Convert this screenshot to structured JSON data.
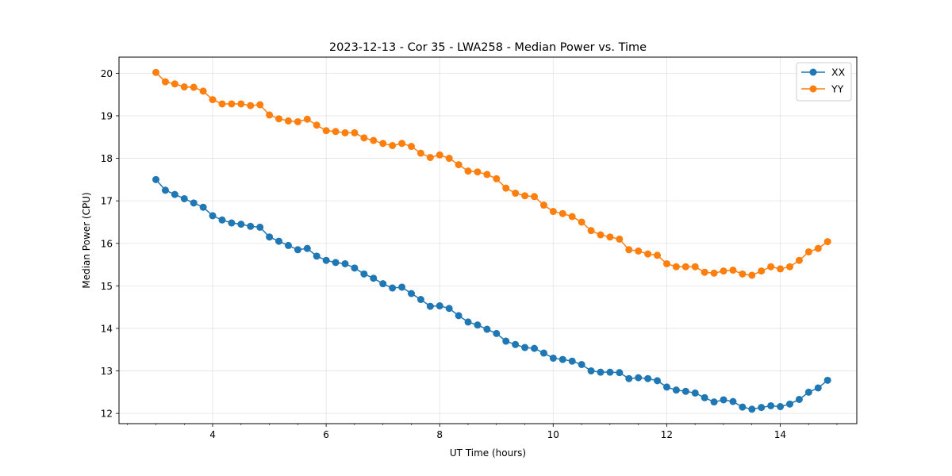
{
  "chart_data": {
    "type": "line",
    "title": "2023-12-13 - Cor 35 - LWA258 - Median Power vs. Time",
    "xlabel": "UT Time (hours)",
    "ylabel": "Median Power (CPU)",
    "xlim": [
      2.35,
      15.35
    ],
    "ylim": [
      11.76,
      20.38
    ],
    "xticks": [
      4,
      6,
      8,
      10,
      12,
      14
    ],
    "xtick_labels": [
      "4",
      "6",
      "8",
      "10",
      "12",
      "14"
    ],
    "yticks": [
      12,
      13,
      14,
      15,
      16,
      17,
      18,
      19,
      20
    ],
    "ytick_labels": [
      "12",
      "13",
      "14",
      "15",
      "16",
      "17",
      "18",
      "19",
      "20"
    ],
    "grid": true,
    "legend_position": "top-right",
    "x_start": 3.0,
    "x_step": 0.1667,
    "series": [
      {
        "name": "XX",
        "color": "#1f77b4",
        "values": [
          17.5,
          17.25,
          17.15,
          17.05,
          16.95,
          16.85,
          16.65,
          16.55,
          16.48,
          16.45,
          16.4,
          16.38,
          16.15,
          16.05,
          15.95,
          15.85,
          15.88,
          15.7,
          15.6,
          15.55,
          15.52,
          15.42,
          15.28,
          15.18,
          15.05,
          14.95,
          14.97,
          14.82,
          14.68,
          14.52,
          14.53,
          14.47,
          14.3,
          14.15,
          14.08,
          13.98,
          13.88,
          13.7,
          13.62,
          13.55,
          13.53,
          13.42,
          13.3,
          13.27,
          13.23,
          13.15,
          13.0,
          12.97,
          12.97,
          12.96,
          12.82,
          12.84,
          12.82,
          12.77,
          12.62,
          12.55,
          12.52,
          12.48,
          12.37,
          12.27,
          12.32,
          12.28,
          12.15,
          12.1,
          12.14,
          12.18,
          12.16,
          12.22,
          12.33,
          12.5,
          12.6,
          12.78
        ]
      },
      {
        "name": "YY",
        "color": "#ff7f0e",
        "values": [
          20.02,
          19.8,
          19.75,
          19.68,
          19.67,
          19.58,
          19.38,
          19.28,
          19.28,
          19.28,
          19.24,
          19.26,
          19.02,
          18.93,
          18.88,
          18.86,
          18.92,
          18.78,
          18.65,
          18.63,
          18.6,
          18.6,
          18.48,
          18.42,
          18.35,
          18.3,
          18.35,
          18.28,
          18.12,
          18.02,
          18.08,
          18.0,
          17.85,
          17.7,
          17.68,
          17.62,
          17.52,
          17.3,
          17.18,
          17.12,
          17.1,
          16.9,
          16.75,
          16.7,
          16.63,
          16.5,
          16.3,
          16.2,
          16.15,
          16.1,
          15.85,
          15.82,
          15.75,
          15.72,
          15.52,
          15.45,
          15.45,
          15.45,
          15.32,
          15.3,
          15.35,
          15.37,
          15.28,
          15.25,
          15.35,
          15.45,
          15.4,
          15.45,
          15.6,
          15.8,
          15.88,
          16.04
        ]
      }
    ]
  }
}
